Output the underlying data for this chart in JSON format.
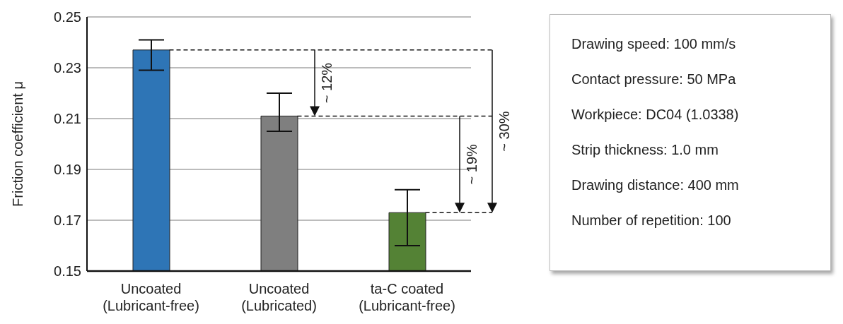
{
  "chart_data": {
    "type": "bar",
    "ylabel": "Friction coefficient μ",
    "categories": [
      "Uncoated (Lubricant-free)",
      "Uncoated (Lubricated)",
      "ta-C coated (Lubricant-free)"
    ],
    "values": [
      0.237,
      0.211,
      0.173
    ],
    "colors": [
      "#2e75b6",
      "#7f7f7f",
      "#548235"
    ],
    "errors": [
      [
        0.229,
        0.241
      ],
      [
        0.205,
        0.22
      ],
      [
        0.16,
        0.182
      ]
    ],
    "ylim": [
      0.15,
      0.25
    ],
    "yticks": [
      0.15,
      0.17,
      0.19,
      0.21,
      0.23,
      0.25
    ],
    "grid": "y",
    "ref_lines": [
      {
        "axis": "y",
        "value": 0.237,
        "color": "#111111",
        "line_style": "dashed"
      },
      {
        "axis": "y",
        "value": 0.211,
        "color": "#111111",
        "line_style": "dashed"
      },
      {
        "axis": "y",
        "value": 0.173,
        "color": "#111111",
        "line_style": "dashed"
      }
    ],
    "annotations": [
      "~ 12%",
      "~ 19%",
      "~ 30%",
      "Drawing speed: 100 mm/s",
      "Contact pressure: 50 MPa",
      "Workpiece: DC04 (1.0338)",
      "Strip thickness: 1.0 mm",
      "Drawing distance: 400 mm",
      "Number of repetition: 100"
    ]
  }
}
